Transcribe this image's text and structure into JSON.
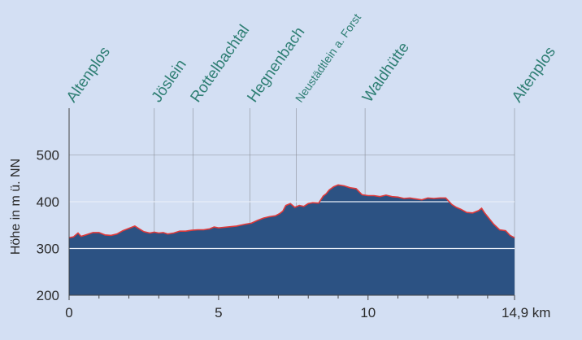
{
  "chart_data": {
    "type": "area",
    "title": "",
    "xlabel": "",
    "ylabel": "Höhe in m ü. NN",
    "xlim": [
      0,
      14.9
    ],
    "ylim": [
      200,
      600
    ],
    "x_ticks": [
      {
        "value": 0,
        "label": "0"
      },
      {
        "value": 5,
        "label": "5"
      },
      {
        "value": 10,
        "label": "10"
      },
      {
        "value": 14.9,
        "label": "14,9 km"
      }
    ],
    "y_ticks": [
      {
        "value": 200,
        "label": "200"
      },
      {
        "value": 300,
        "label": "300"
      },
      {
        "value": 400,
        "label": "400"
      },
      {
        "value": 500,
        "label": "500"
      }
    ],
    "waypoints": [
      {
        "name": "Altenplos",
        "km": 0
      },
      {
        "name": "Jöslein",
        "km": 2.85
      },
      {
        "name": "Rottelbachtal",
        "km": 4.15
      },
      {
        "name": "Hegnenbach",
        "km": 6.05
      },
      {
        "name": "Neustädtlein a. Forst",
        "km": 7.6,
        "small": true
      },
      {
        "name": "Waldhütte",
        "km": 9.9
      },
      {
        "name": "Altenplos",
        "km": 14.9
      }
    ],
    "series": [
      {
        "fill_color": "#2c5283",
        "line_color": "#e03a3a",
        "x": [
          0,
          0.15,
          0.3,
          0.4,
          0.6,
          0.8,
          1.0,
          1.2,
          1.4,
          1.6,
          1.8,
          2.0,
          2.2,
          2.35,
          2.5,
          2.7,
          2.85,
          3.0,
          3.15,
          3.3,
          3.5,
          3.7,
          3.9,
          4.1,
          4.3,
          4.5,
          4.7,
          4.85,
          5.0,
          5.3,
          5.6,
          5.9,
          6.1,
          6.3,
          6.5,
          6.7,
          6.9,
          7.05,
          7.15,
          7.25,
          7.4,
          7.55,
          7.7,
          7.85,
          8.0,
          8.15,
          8.35,
          8.5,
          8.6,
          8.7,
          8.85,
          9.0,
          9.2,
          9.4,
          9.6,
          9.8,
          10.0,
          10.2,
          10.4,
          10.6,
          10.8,
          11.0,
          11.2,
          11.4,
          11.6,
          11.8,
          12.0,
          12.2,
          12.4,
          12.6,
          12.8,
          12.95,
          13.1,
          13.3,
          13.5,
          13.7,
          13.8,
          13.9,
          14.0,
          14.2,
          14.4,
          14.6,
          14.75,
          14.9
        ],
        "values": [
          323,
          325,
          333,
          326,
          330,
          334,
          334,
          329,
          328,
          331,
          338,
          343,
          348,
          342,
          336,
          333,
          335,
          333,
          334,
          331,
          333,
          337,
          337,
          339,
          340,
          340,
          342,
          346,
          344,
          346,
          348,
          352,
          354,
          360,
          365,
          368,
          370,
          375,
          380,
          392,
          396,
          388,
          392,
          390,
          396,
          398,
          397,
          412,
          417,
          425,
          432,
          436,
          434,
          430,
          428,
          415,
          413,
          413,
          411,
          414,
          411,
          410,
          407,
          408,
          406,
          404,
          408,
          407,
          408,
          408,
          394,
          388,
          384,
          377,
          376,
          381,
          386,
          376,
          368,
          352,
          340,
          338,
          328,
          323
        ]
      }
    ],
    "reference_lines": [
      300,
      400
    ],
    "grid": true
  }
}
